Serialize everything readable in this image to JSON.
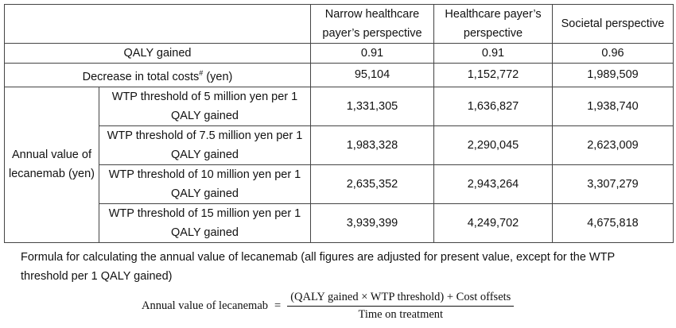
{
  "table": {
    "headers": [
      "Narrow healthcare payer’s perspective",
      "Healthcare payer’s perspective",
      "Societal perspective"
    ],
    "qaly_row": {
      "label": "QALY gained",
      "values": [
        "0.91",
        "0.91",
        "0.96"
      ]
    },
    "cost_row": {
      "label": "Decrease in total costs",
      "sup": "#",
      "unit": " (yen)",
      "values": [
        "95,104",
        "1,152,772",
        "1,989,509"
      ]
    },
    "group_label": "Annual value of lecanemab (yen)",
    "wtp_rows": [
      {
        "label": "WTP threshold of 5 million yen per 1 QALY gained",
        "values": [
          "1,331,305",
          "1,636,827",
          "1,938,740"
        ]
      },
      {
        "label": "WTP threshold of 7.5 million yen per 1 QALY gained",
        "values": [
          "1,983,328",
          "2,290,045",
          "2,623,009"
        ]
      },
      {
        "label": "WTP threshold of 10 million yen per 1 QALY gained",
        "values": [
          "2,635,352",
          "2,943,264",
          "3,307,279"
        ]
      },
      {
        "label": "WTP threshold of 15 million yen per 1 QALY gained",
        "values": [
          "3,939,399",
          "4,249,702",
          "4,675,818"
        ]
      }
    ]
  },
  "note": "Formula for calculating the annual value of lecanemab (all figures are adjusted for present value, except for the WTP threshold per 1 QALY gained)",
  "formula": {
    "lhs": "Annual value of lecanemab",
    "eq": "=",
    "numerator": "(QALY gained × WTP threshold) + Cost offsets",
    "denominator": "Time on treatment"
  }
}
